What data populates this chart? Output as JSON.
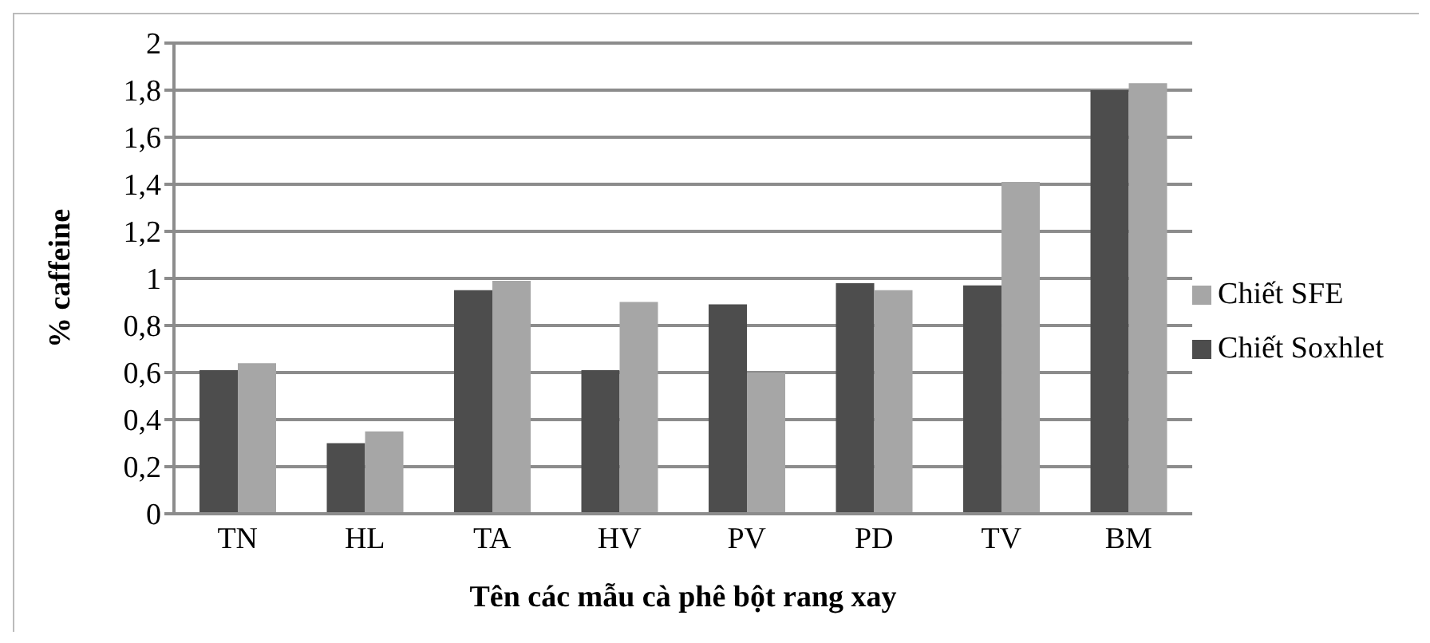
{
  "chart_data": {
    "type": "bar",
    "xlabel": "Tên các mẫu cà phê bột rang xay",
    "ylabel": "% caffeine",
    "categories": [
      "TN",
      "HL",
      "TA",
      "HV",
      "PV",
      "PD",
      "TV",
      "BM"
    ],
    "series": [
      {
        "name": "Chiết Soxhlet",
        "color": "#4d4d4d",
        "values": [
          0.61,
          0.3,
          0.95,
          0.61,
          0.89,
          0.98,
          0.97,
          1.8
        ]
      },
      {
        "name": "Chiết SFE",
        "color": "#a6a6a6",
        "values": [
          0.64,
          0.35,
          0.99,
          0.9,
          0.6,
          0.95,
          1.41,
          1.83
        ]
      }
    ],
    "ylim": [
      0,
      2
    ],
    "yticks": [
      0,
      {
        "value": 0.2,
        "label": "0,2"
      },
      {
        "value": 0.4,
        "label": "0,4"
      },
      {
        "value": 0.6,
        "label": "0,6"
      },
      {
        "value": 0.8,
        "label": "0,8"
      },
      1,
      {
        "value": 1.2,
        "label": "1,2"
      },
      {
        "value": 1.4,
        "label": "1,4"
      },
      {
        "value": 1.6,
        "label": "1,6"
      },
      {
        "value": 1.8,
        "label": "1,8"
      },
      2
    ],
    "grid": "y",
    "legend": "right"
  }
}
